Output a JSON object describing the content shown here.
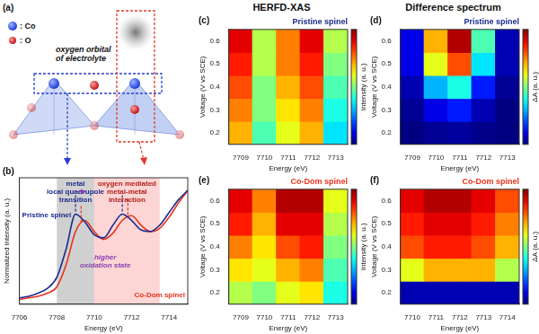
{
  "column_titles": [
    "HERFD-XAS",
    "Difference spectrum"
  ],
  "diagram": {
    "label": "(a)",
    "legend": [
      {
        "text": ": Co",
        "color": "#1e3cd8"
      },
      {
        "text": ": O",
        "color": "#c0181c"
      }
    ],
    "note": [
      "oxygen orbital",
      "of electrolyte"
    ]
  },
  "chart_data": [
    {
      "label": "(b)",
      "type": "line",
      "x": [
        7706,
        7706.5,
        7707,
        7707.5,
        7708,
        7708.5,
        7709,
        7709.5,
        7710,
        7710.5,
        7711,
        7711.5,
        7712,
        7712.5,
        7713,
        7713.5,
        7714,
        7714.5,
        7715
      ],
      "series": [
        {
          "name": "Pristine spinel",
          "color": "#1b2a8f",
          "values": [
            0.04,
            0.05,
            0.07,
            0.1,
            0.17,
            0.35,
            0.57,
            0.52,
            0.44,
            0.42,
            0.5,
            0.57,
            0.53,
            0.47,
            0.46,
            0.5,
            0.58,
            0.66,
            0.72
          ],
          "peaks": [
            7709,
            7711.5
          ]
        },
        {
          "name": "Co-Dom spinel",
          "color": "#e8331c",
          "values": [
            0.03,
            0.04,
            0.05,
            0.07,
            0.11,
            0.25,
            0.46,
            0.53,
            0.46,
            0.41,
            0.45,
            0.53,
            0.56,
            0.5,
            0.46,
            0.48,
            0.55,
            0.64,
            0.72
          ],
          "peaks": [
            7709.3,
            7711.8
          ]
        }
      ],
      "x_label": "Energy (eV)",
      "y_label": "Normalized intensity (a. u.)",
      "xlim": [
        7706,
        7715
      ],
      "xticks": [
        7706,
        7708,
        7710,
        7712,
        7714
      ],
      "ylim": [
        0,
        0.8
      ],
      "tick_labels": "x",
      "bands": [
        {
          "from": 7708,
          "to": 7710,
          "text": [
            "metal",
            "local quadrupole",
            "transition"
          ]
        },
        {
          "from": 7710,
          "to": 7713.5,
          "text": [
            "oxygen mediated",
            "metal-metal",
            "interaction"
          ]
        }
      ],
      "annotations": [
        {
          "text": [
            "higher",
            "oxidation state"
          ]
        }
      ]
    },
    {
      "label": "(c)",
      "type": "heatmap",
      "title": "Pristine spinel",
      "x": [
        7709,
        7710,
        7711,
        7712,
        7713
      ],
      "y": [
        0.2,
        0.3,
        0.4,
        0.5,
        0.6
      ],
      "cells": [
        [
          0.7,
          0.45,
          0.6,
          0.7,
          0.35
        ],
        [
          0.75,
          0.5,
          0.65,
          0.75,
          0.4
        ],
        [
          0.8,
          0.5,
          0.7,
          0.8,
          0.45
        ],
        [
          0.85,
          0.55,
          0.75,
          0.85,
          0.5
        ],
        [
          0.9,
          0.55,
          0.75,
          0.9,
          0.55
        ]
      ],
      "zlim": [
        0,
        1
      ],
      "z_label": "Intensity (a. u.)",
      "x_label": "Energy (eV)",
      "y_label": "Voltage (V vs SCE)",
      "xlim": [
        7708.5,
        7713.5
      ],
      "xticks": [
        7709,
        7710,
        7711,
        7712,
        7713
      ],
      "ylim": [
        0.15,
        0.65
      ],
      "yticks": [
        0.2,
        0.3,
        0.4,
        0.5,
        0.6
      ]
    },
    {
      "label": "(d)",
      "type": "heatmap",
      "title": "Pristine spinel",
      "x": [
        7709,
        7710,
        7711,
        7712,
        7713
      ],
      "y": [
        0.2,
        0.3,
        0.4,
        0.5,
        0.6
      ],
      "cells": [
        [
          0.0,
          0.02,
          0.03,
          0.01,
          0.0
        ],
        [
          0.02,
          0.1,
          0.15,
          0.05,
          0.0
        ],
        [
          0.05,
          0.3,
          0.4,
          0.15,
          0.02
        ],
        [
          0.1,
          0.6,
          0.8,
          0.35,
          0.05
        ],
        [
          0.1,
          0.7,
          0.95,
          0.45,
          0.05
        ]
      ],
      "zlim": [
        0,
        1
      ],
      "z_label": "ΔA (a. u.)",
      "x_label": "Energy (eV)",
      "y_label": "Voltage (V vs SCE)",
      "xlim": [
        7708.5,
        7713.5
      ],
      "xticks": [
        7709,
        7710,
        7711,
        7712,
        7713
      ],
      "ylim": [
        0.15,
        0.65
      ],
      "yticks": [
        0.2,
        0.3,
        0.4,
        0.5,
        0.6
      ]
    },
    {
      "label": "(e)",
      "type": "heatmap",
      "title": "Co-Dom spinel",
      "x": [
        7709,
        7710,
        7711,
        7712,
        7713
      ],
      "y": [
        0.2,
        0.3,
        0.4,
        0.5,
        0.6
      ],
      "cells": [
        [
          0.55,
          0.5,
          0.6,
          0.65,
          0.4
        ],
        [
          0.65,
          0.6,
          0.7,
          0.75,
          0.45
        ],
        [
          0.75,
          0.65,
          0.8,
          0.85,
          0.5
        ],
        [
          0.85,
          0.7,
          0.9,
          0.9,
          0.55
        ],
        [
          0.9,
          0.75,
          0.95,
          0.95,
          0.6
        ]
      ],
      "zlim": [
        0,
        1
      ],
      "z_label": "Intensity (a. u.)",
      "x_label": "Energy (eV)",
      "y_label": "Voltage (V vs SCE)",
      "xlim": [
        7708.5,
        7713.5
      ],
      "xticks": [
        7709,
        7710,
        7711,
        7712,
        7713
      ],
      "ylim": [
        0.15,
        0.65
      ],
      "yticks": [
        0.2,
        0.3,
        0.4,
        0.5,
        0.6
      ]
    },
    {
      "label": "(f)",
      "type": "heatmap",
      "title": "Co-Dom spinel",
      "x": [
        7710,
        7711,
        7712,
        7713,
        7714
      ],
      "y": [
        0.2,
        0.3,
        0.4,
        0.5,
        0.6
      ],
      "cells": [
        [
          0.05,
          0.05,
          0.05,
          0.05,
          0.05
        ],
        [
          0.6,
          0.7,
          0.7,
          0.7,
          0.55
        ],
        [
          0.8,
          0.85,
          0.85,
          0.8,
          0.7
        ],
        [
          0.85,
          0.9,
          0.9,
          0.85,
          0.75
        ],
        [
          0.9,
          0.95,
          0.95,
          0.9,
          0.8
        ]
      ],
      "zlim": [
        0,
        1
      ],
      "z_label": "ΔA (a. u.)",
      "x_label": "Energy (eV)",
      "y_label": "Voltage (V vs SCE)",
      "xlim": [
        7709.5,
        7714.5
      ],
      "xticks": [
        7710,
        7711,
        7712,
        7713,
        7714
      ],
      "ylim": [
        0.15,
        0.65
      ],
      "yticks": [
        0.2,
        0.3,
        0.4,
        0.5,
        0.6
      ]
    }
  ]
}
